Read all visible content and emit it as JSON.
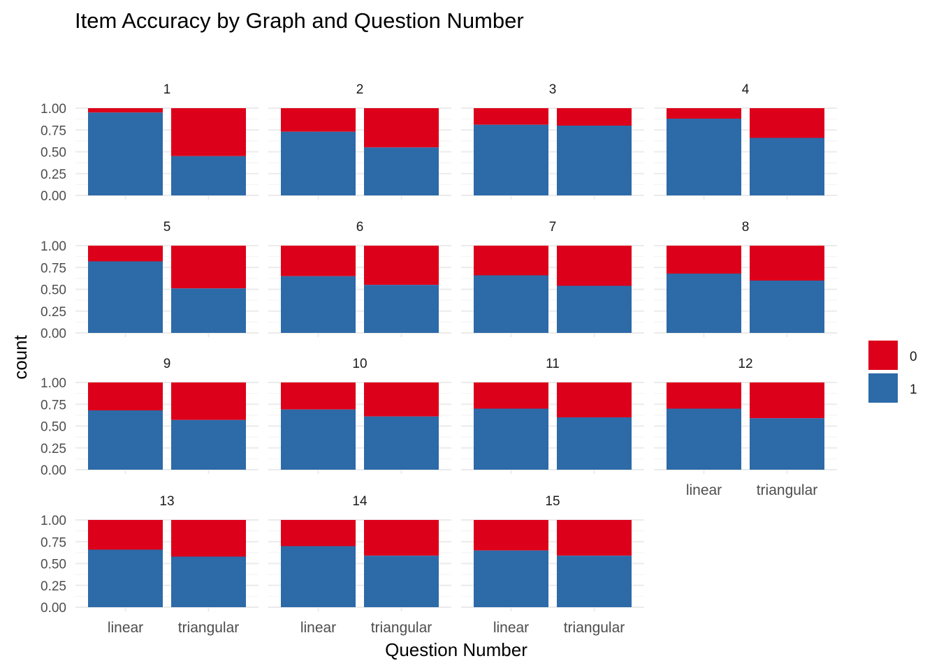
{
  "chart_data": {
    "type": "bar",
    "stacked": true,
    "title": "Item Accuracy by Graph and Question Number",
    "xlabel": "Question Number",
    "ylabel": "count",
    "ylim": [
      0,
      1
    ],
    "y_ticks": [
      "0.00",
      "0.25",
      "0.50",
      "0.75",
      "1.00"
    ],
    "categories": [
      "linear",
      "triangular"
    ],
    "grid": true,
    "legend": {
      "placement": "right",
      "entries": [
        {
          "label": "0",
          "color": "#DC001A"
        },
        {
          "label": "1",
          "color": "#2D6AA8"
        }
      ]
    },
    "panels": [
      {
        "label": "1",
        "values_1": [
          0.95,
          0.45
        ]
      },
      {
        "label": "2",
        "values_1": [
          0.73,
          0.55
        ]
      },
      {
        "label": "3",
        "values_1": [
          0.81,
          0.8
        ]
      },
      {
        "label": "4",
        "values_1": [
          0.88,
          0.66
        ]
      },
      {
        "label": "5",
        "values_1": [
          0.82,
          0.51
        ]
      },
      {
        "label": "6",
        "values_1": [
          0.65,
          0.55
        ]
      },
      {
        "label": "7",
        "values_1": [
          0.66,
          0.54
        ]
      },
      {
        "label": "8",
        "values_1": [
          0.68,
          0.6
        ]
      },
      {
        "label": "9",
        "values_1": [
          0.68,
          0.57
        ]
      },
      {
        "label": "10",
        "values_1": [
          0.69,
          0.61
        ]
      },
      {
        "label": "11",
        "values_1": [
          0.7,
          0.6
        ]
      },
      {
        "label": "12",
        "values_1": [
          0.7,
          0.59
        ]
      },
      {
        "label": "13",
        "values_1": [
          0.66,
          0.58
        ]
      },
      {
        "label": "14",
        "values_1": [
          0.7,
          0.59
        ]
      },
      {
        "label": "15",
        "values_1": [
          0.65,
          0.59
        ]
      }
    ]
  }
}
